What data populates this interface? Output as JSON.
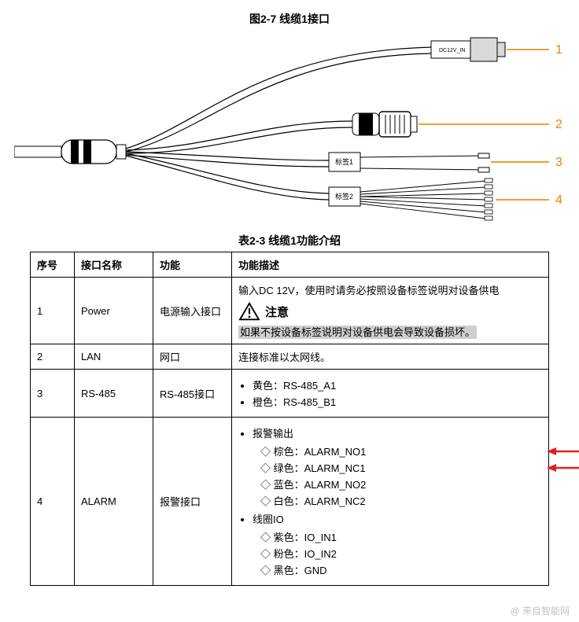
{
  "figure": {
    "title": "图2-7 线缆1接口",
    "labels": {
      "n1": "1",
      "n2": "2",
      "n3": "3",
      "n4": "4"
    },
    "tag1": "标签1",
    "tag2": "标签2",
    "plug_text": "DC12V_IN",
    "number_color": "#f08000",
    "line_color": "#f0a030"
  },
  "table": {
    "title": "表2-3 线缆1功能介绍",
    "headers": {
      "seq": "序号",
      "name": "接口名称",
      "func": "功能",
      "desc": "功能描述"
    },
    "rows": {
      "r1": {
        "seq": "1",
        "name": "Power",
        "func": "电源输入接口",
        "desc_top": "输入DC 12V，使用时请务必按照设备标签说明对设备供电",
        "warn_label": "注意",
        "warn_text": "如果不按设备标签说明对设备供电会导致设备损坏。"
      },
      "r2": {
        "seq": "2",
        "name": "LAN",
        "func": "网口",
        "desc": "连接标准以太网线。"
      },
      "r3": {
        "seq": "3",
        "name": "RS-485",
        "func": "RS-485接口",
        "b1": "黄色：RS-485_A1",
        "b2": "橙色：RS-485_B1"
      },
      "r4": {
        "seq": "4",
        "name": "ALARM",
        "func": "报警接口",
        "g1": "报警输出",
        "a1": "棕色：ALARM_NO1",
        "a2": "绿色：ALARM_NC1",
        "a3": "蓝色：ALARM_NO2",
        "a4": "白色：ALARM_NC2",
        "g2": "线圈IO",
        "c1": "紫色：IO_IN1",
        "c2": "粉色：IO_IN2",
        "c3": "黑色：GND"
      }
    }
  },
  "arrows": {
    "color": "#e02020"
  },
  "watermark": "@ 来自智能网"
}
